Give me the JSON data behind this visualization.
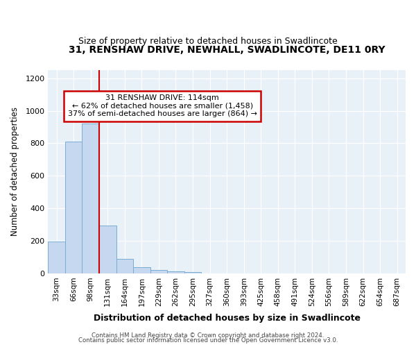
{
  "title": "31, RENSHAW DRIVE, NEWHALL, SWADLINCOTE, DE11 0RY",
  "subtitle": "Size of property relative to detached houses in Swadlincote",
  "xlabel": "Distribution of detached houses by size in Swadlincote",
  "ylabel": "Number of detached properties",
  "bin_labels": [
    "33sqm",
    "66sqm",
    "98sqm",
    "131sqm",
    "164sqm",
    "197sqm",
    "229sqm",
    "262sqm",
    "295sqm",
    "327sqm",
    "360sqm",
    "393sqm",
    "425sqm",
    "458sqm",
    "491sqm",
    "524sqm",
    "556sqm",
    "589sqm",
    "622sqm",
    "654sqm",
    "687sqm"
  ],
  "bin_values": [
    195,
    810,
    920,
    295,
    90,
    38,
    20,
    12,
    10,
    0,
    0,
    0,
    0,
    0,
    0,
    0,
    0,
    0,
    0,
    0,
    0
  ],
  "bar_color": "#c5d8f0",
  "bar_edge_color": "#7aadd4",
  "vline_color": "#cc0000",
  "vline_x": 2.5,
  "annotation_text": "31 RENSHAW DRIVE: 114sqm\n← 62% of detached houses are smaller (1,458)\n37% of semi-detached houses are larger (864) →",
  "annotation_box_color": "#ffffff",
  "annotation_border_color": "#cc0000",
  "footer1": "Contains HM Land Registry data © Crown copyright and database right 2024.",
  "footer2": "Contains public sector information licensed under the Open Government Licence v3.0.",
  "ylim": [
    0,
    1250
  ],
  "yticks": [
    0,
    200,
    400,
    600,
    800,
    1000,
    1200
  ],
  "fig_bg": "#ffffff",
  "plot_bg": "#e8f0f8",
  "grid_color": "#ffffff",
  "title_fontsize": 10,
  "subtitle_fontsize": 9
}
